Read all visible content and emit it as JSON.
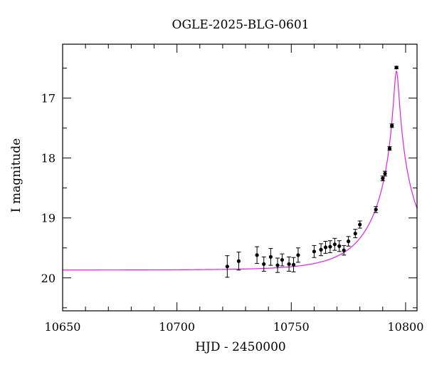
{
  "chart_data": {
    "type": "scatter",
    "title": "OGLE-2025-BLG-0601",
    "xlabel": "HJD - 2450000",
    "ylabel": "I magnitude",
    "xlim": [
      10650,
      10805
    ],
    "ylim": [
      20.55,
      16.1
    ],
    "y_inverted": true,
    "x_ticks": [
      10650,
      10700,
      10750,
      10800
    ],
    "x_tick_labels": [
      "10650",
      "10700",
      "10750",
      "10800"
    ],
    "y_ticks": [
      17,
      18,
      19,
      20
    ],
    "y_tick_labels": [
      "17",
      "18",
      "19",
      "20"
    ],
    "grid": false,
    "series": [
      {
        "kind": "points_with_errorbars",
        "color": "#000000",
        "points": [
          {
            "x": 10722.0,
            "y": 19.81,
            "err": 0.18
          },
          {
            "x": 10727.0,
            "y": 19.72,
            "err": 0.15
          },
          {
            "x": 10735.0,
            "y": 19.62,
            "err": 0.14
          },
          {
            "x": 10738.0,
            "y": 19.77,
            "err": 0.12
          },
          {
            "x": 10741.0,
            "y": 19.65,
            "err": 0.14
          },
          {
            "x": 10744.0,
            "y": 19.79,
            "err": 0.12
          },
          {
            "x": 10746.0,
            "y": 19.7,
            "err": 0.1
          },
          {
            "x": 10749.0,
            "y": 19.77,
            "err": 0.12
          },
          {
            "x": 10751.0,
            "y": 19.78,
            "err": 0.12
          },
          {
            "x": 10753.0,
            "y": 19.62,
            "err": 0.12
          },
          {
            "x": 10760.0,
            "y": 19.56,
            "err": 0.1
          },
          {
            "x": 10763.0,
            "y": 19.53,
            "err": 0.1
          },
          {
            "x": 10765.0,
            "y": 19.49,
            "err": 0.1
          },
          {
            "x": 10767.0,
            "y": 19.48,
            "err": 0.1
          },
          {
            "x": 10769.0,
            "y": 19.44,
            "err": 0.1
          },
          {
            "x": 10771.0,
            "y": 19.47,
            "err": 0.09
          },
          {
            "x": 10773.0,
            "y": 19.54,
            "err": 0.08
          },
          {
            "x": 10775.0,
            "y": 19.39,
            "err": 0.08
          },
          {
            "x": 10778.0,
            "y": 19.26,
            "err": 0.07
          },
          {
            "x": 10780.0,
            "y": 19.11,
            "err": 0.06
          },
          {
            "x": 10787.0,
            "y": 18.86,
            "err": 0.05
          },
          {
            "x": 10790.0,
            "y": 18.34,
            "err": 0.04
          },
          {
            "x": 10791.0,
            "y": 18.26,
            "err": 0.04
          },
          {
            "x": 10793.0,
            "y": 17.84,
            "err": 0.03
          },
          {
            "x": 10794.0,
            "y": 17.46,
            "err": 0.03
          },
          {
            "x": 10796.0,
            "y": 16.49,
            "err": 0.02
          }
        ]
      },
      {
        "kind": "model_curve",
        "color": "#e020e0",
        "model": {
          "t0": 10796,
          "u0": 0.047,
          "tE": 22.0,
          "I_base": 19.87
        }
      }
    ]
  }
}
